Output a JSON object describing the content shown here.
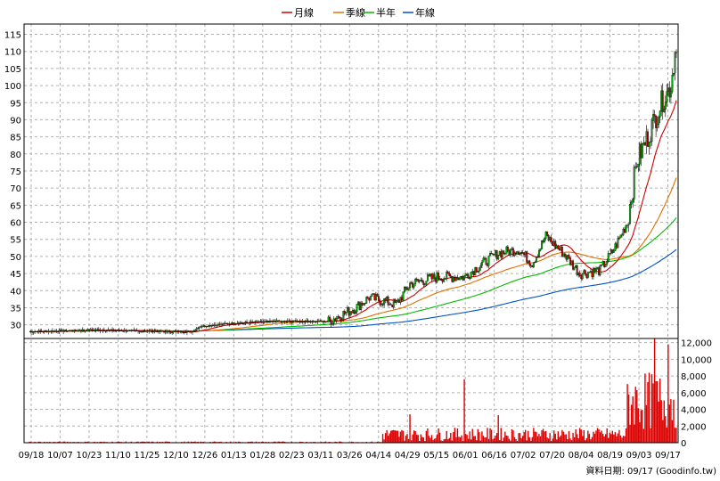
{
  "chart_data": {
    "type": "candlestick",
    "legend": [
      {
        "name": "月線",
        "color": "#cc0000"
      },
      {
        "name": "季線",
        "color": "#e07000"
      },
      {
        "name": "半年",
        "color": "#00bb00"
      },
      {
        "name": "年線",
        "color": "#0050c8"
      }
    ],
    "price_ylim": [
      26,
      118
    ],
    "price_ticks": [
      30,
      35,
      40,
      45,
      50,
      55,
      60,
      65,
      70,
      75,
      80,
      85,
      90,
      95,
      100,
      105,
      110,
      115
    ],
    "volume_ylim": [
      0,
      12500
    ],
    "volume_ticks": [
      0,
      2000,
      4000,
      6000,
      8000,
      10000,
      12000
    ],
    "volume_tick_labels": [
      "0",
      "2,000",
      "4,000",
      "6,000",
      "8,000",
      "10,000",
      "12,000"
    ],
    "x_labels": [
      "09/18",
      "10/07",
      "10/23",
      "11/10",
      "11/25",
      "12/10",
      "12/26",
      "01/13",
      "01/28",
      "02/23",
      "03/11",
      "03/26",
      "04/14",
      "04/29",
      "05/15",
      "06/01",
      "06/16",
      "07/02",
      "07/20",
      "08/04",
      "08/19",
      "09/03",
      "09/17"
    ],
    "ma_colors": {
      "month": "#cc0000",
      "quarter": "#e07000",
      "half": "#00bb00",
      "year": "#0050c8"
    },
    "up_color": "#00aa00",
    "down_color": "#cc0000",
    "volume_color": "#dd0000",
    "footer": "資料日期: 09/17  (Goodinfo.tw)"
  }
}
